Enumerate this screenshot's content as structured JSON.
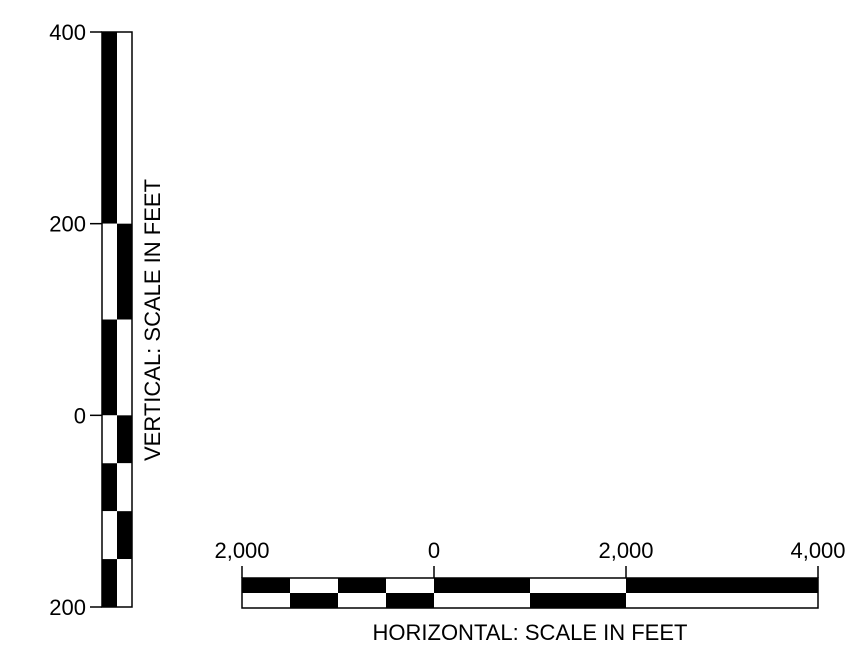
{
  "vertical_scale": {
    "title": "VERTICAL: SCALE IN FEET",
    "tick_labels": [
      "400",
      "200",
      "0",
      "200"
    ],
    "tick_values": [
      400,
      200,
      0,
      -200
    ],
    "bar_range": [
      -200,
      400
    ],
    "segments": [
      {
        "from": 200,
        "to": 400,
        "left": "black",
        "right": "white"
      },
      {
        "from": 100,
        "to": 200,
        "left": "white",
        "right": "black"
      },
      {
        "from": 0,
        "to": 100,
        "left": "black",
        "right": "white"
      },
      {
        "from": -50,
        "to": 0,
        "left": "white",
        "right": "black"
      },
      {
        "from": -100,
        "to": -50,
        "left": "black",
        "right": "white"
      },
      {
        "from": -150,
        "to": -100,
        "left": "white",
        "right": "black"
      },
      {
        "from": -200,
        "to": -150,
        "left": "black",
        "right": "white"
      }
    ]
  },
  "horizontal_scale": {
    "title": "HORIZONTAL: SCALE IN FEET",
    "tick_labels": [
      "2,000",
      "0",
      "2,000",
      "4,000"
    ],
    "tick_values": [
      -2000,
      0,
      2000,
      4000
    ],
    "bar_range": [
      -2000,
      4000
    ],
    "segments": [
      {
        "from": -2000,
        "to": -1500,
        "top": "black",
        "bottom": "white"
      },
      {
        "from": -1500,
        "to": -1000,
        "top": "white",
        "bottom": "black"
      },
      {
        "from": -1000,
        "to": -500,
        "top": "black",
        "bottom": "white"
      },
      {
        "from": -500,
        "to": 0,
        "top": "white",
        "bottom": "black"
      },
      {
        "from": 0,
        "to": 1000,
        "top": "black",
        "bottom": "white"
      },
      {
        "from": 1000,
        "to": 2000,
        "top": "white",
        "bottom": "black"
      },
      {
        "from": 2000,
        "to": 4000,
        "top": "black",
        "bottom": "white"
      }
    ]
  },
  "colors": {
    "black": "#000000",
    "white": "#ffffff"
  }
}
